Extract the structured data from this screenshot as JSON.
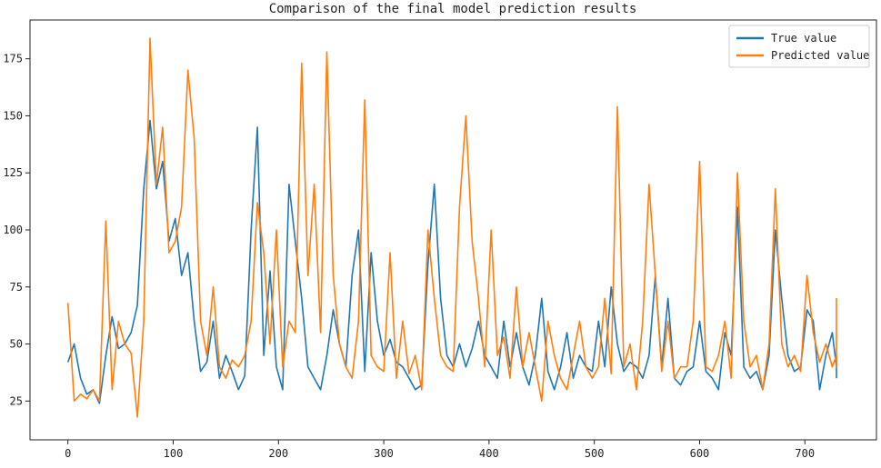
{
  "chart_data": {
    "type": "line",
    "title": "Comparison of the final model prediction results",
    "xlabel": "",
    "ylabel": "",
    "xlim": [
      -36,
      768
    ],
    "ylim": [
      8,
      192
    ],
    "x_ticks": [
      0,
      100,
      200,
      300,
      400,
      500,
      600,
      700
    ],
    "y_ticks": [
      25,
      50,
      75,
      100,
      125,
      150,
      175
    ],
    "grid": false,
    "legend_position": "top-right",
    "x_count": 731,
    "series": [
      {
        "name": "True value",
        "color": "#1f77b4",
        "sample_step": 6,
        "values": [
          42,
          50,
          35,
          28,
          30,
          24,
          45,
          62,
          48,
          50,
          55,
          67,
          118,
          148,
          118,
          130,
          95,
          105,
          80,
          90,
          60,
          38,
          42,
          60,
          35,
          45,
          38,
          30,
          36,
          100,
          145,
          45,
          82,
          40,
          30,
          120,
          95,
          70,
          40,
          35,
          30,
          45,
          65,
          50,
          40,
          80,
          100,
          38,
          90,
          60,
          45,
          52,
          42,
          40,
          35,
          30,
          32,
          85,
          120,
          70,
          45,
          40,
          50,
          40,
          48,
          60,
          45,
          40,
          35,
          60,
          40,
          55,
          40,
          32,
          45,
          70,
          38,
          30,
          40,
          55,
          35,
          45,
          40,
          38,
          60,
          40,
          75,
          50,
          38,
          42,
          40,
          35,
          45,
          80,
          40,
          70,
          35,
          32,
          38,
          40,
          60,
          38,
          35,
          30,
          55,
          45,
          110,
          40,
          35,
          38,
          30,
          45,
          100,
          70,
          45,
          38,
          40,
          65,
          60,
          30,
          45,
          55,
          40,
          38,
          40,
          45,
          35
        ]
      },
      {
        "name": "Predicted value",
        "color": "#ff7f0e",
        "sample_step": 6,
        "values": [
          68,
          25,
          28,
          26,
          30,
          25,
          104,
          30,
          60,
          50,
          46,
          18,
          60,
          184,
          120,
          145,
          90,
          95,
          110,
          170,
          140,
          60,
          45,
          75,
          40,
          35,
          43,
          40,
          45,
          60,
          112,
          90,
          50,
          100,
          40,
          60,
          55,
          173,
          80,
          120,
          55,
          178,
          80,
          50,
          40,
          35,
          60,
          157,
          45,
          40,
          38,
          90,
          35,
          60,
          37,
          45,
          30,
          100,
          70,
          45,
          40,
          38,
          110,
          150,
          95,
          70,
          40,
          100,
          45,
          53,
          35,
          75,
          40,
          55,
          40,
          25,
          60,
          45,
          35,
          30,
          45,
          60,
          40,
          35,
          40,
          70,
          37,
          154,
          40,
          50,
          30,
          60,
          120,
          80,
          38,
          60,
          35,
          40,
          40,
          60,
          130,
          40,
          38,
          45,
          60,
          35,
          125,
          60,
          40,
          45,
          30,
          50,
          118,
          50,
          40,
          45,
          38,
          80,
          55,
          42,
          50,
          40,
          45,
          40,
          46,
          48,
          70
        ]
      }
    ]
  }
}
